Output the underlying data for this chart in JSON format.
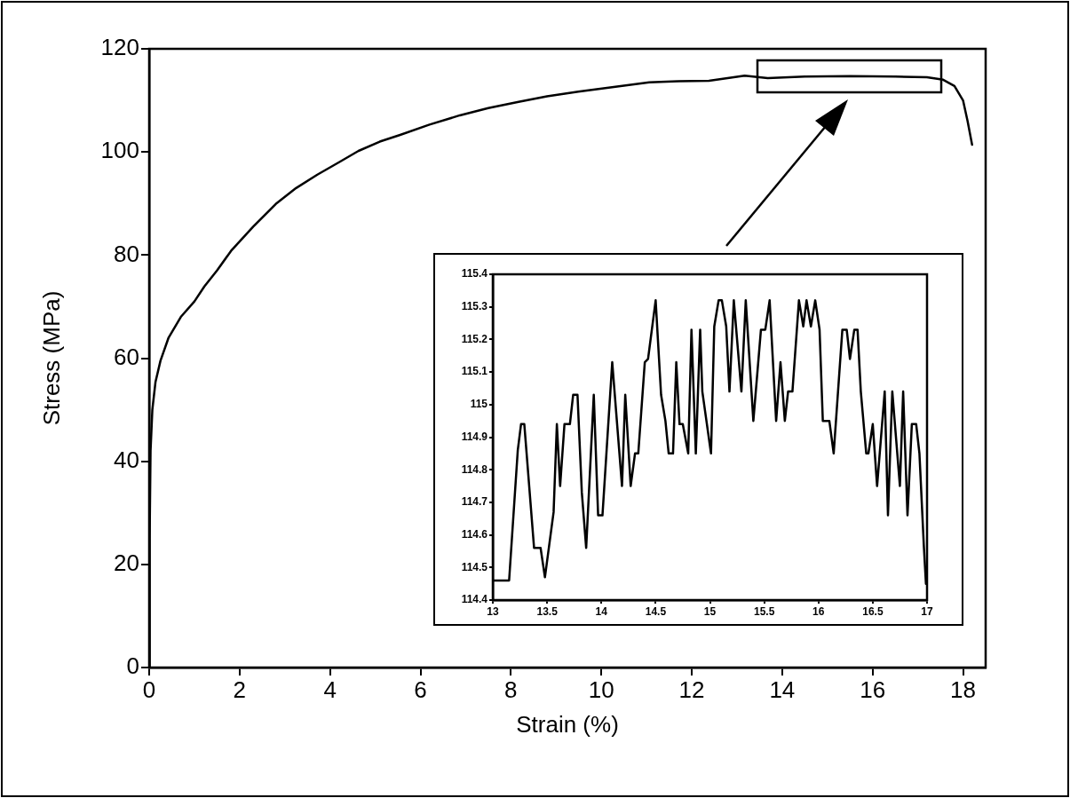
{
  "chart_data": [
    {
      "type": "line",
      "xlabel": "Strain (%)",
      "ylabel": "Stress (MPa)",
      "color": "#000000",
      "grid": false,
      "marker": "none",
      "line_style": "solid",
      "x": [
        0,
        0.01,
        0.03,
        0.07,
        0.14,
        0.25,
        0.43,
        0.7,
        1.0,
        1.22,
        1.5,
        1.81,
        2.3,
        2.8,
        3.25,
        3.72,
        4.2,
        4.63,
        5.1,
        5.55,
        6.2,
        6.87,
        7.5,
        8.17,
        8.8,
        9.49,
        10.2,
        11.06,
        11.7,
        12.38,
        13.17,
        13.68,
        14.5,
        15.5,
        16.5,
        17.2,
        17.56,
        17.81,
        18.0,
        18.1,
        18.2
      ],
      "values": [
        0,
        25,
        42,
        50,
        55.4,
        59.5,
        64,
        68,
        71,
        73.9,
        77,
        80.8,
        85.5,
        89.9,
        93,
        95.6,
        98,
        100.2,
        102,
        103.3,
        105.3,
        107.1,
        108.5,
        109.7,
        110.8,
        111.7,
        112.5,
        113.5,
        113.7,
        113.8,
        114.8,
        114.3,
        114.6,
        114.7,
        114.6,
        114.5,
        114.0,
        112.8,
        110,
        106,
        101.4
      ],
      "xlim": [
        0,
        18.5
      ],
      "xticks": [
        0,
        2,
        4,
        6,
        8,
        10,
        12,
        14,
        16,
        18
      ],
      "ylim": [
        0,
        120
      ],
      "yticks": [
        0,
        20,
        40,
        60,
        80,
        100,
        120
      ]
    },
    {
      "type": "line",
      "color": "#000000",
      "grid": false,
      "marker": "none",
      "line_style": "solid",
      "x": [
        13,
        13.15,
        13.23,
        13.26,
        13.29,
        13.38,
        13.44,
        13.48,
        13.56,
        13.59,
        13.62,
        13.66,
        13.71,
        13.74,
        13.78,
        13.82,
        13.86,
        13.93,
        13.97,
        14.01,
        14.1,
        14.19,
        14.22,
        14.27,
        14.31,
        14.34,
        14.4,
        14.43,
        14.5,
        14.55,
        14.59,
        14.62,
        14.66,
        14.69,
        14.72,
        14.75,
        14.8,
        14.83,
        14.87,
        14.91,
        14.93,
        15.01,
        15.04,
        15.08,
        15.11,
        15.15,
        15.18,
        15.22,
        15.29,
        15.33,
        15.4,
        15.47,
        15.51,
        15.55,
        15.61,
        15.65,
        15.69,
        15.72,
        15.76,
        15.82,
        15.86,
        15.89,
        15.93,
        15.97,
        16.01,
        16.04,
        16.1,
        16.14,
        16.18,
        16.22,
        16.26,
        16.29,
        16.33,
        16.36,
        16.39,
        16.44,
        16.46,
        16.5,
        16.54,
        16.61,
        16.64,
        16.68,
        16.75,
        16.78,
        16.82,
        16.86,
        16.9,
        16.93,
        16.97,
        16.99
      ],
      "values": [
        114.46,
        114.46,
        114.86,
        114.94,
        114.94,
        114.56,
        114.56,
        114.47,
        114.67,
        114.94,
        114.75,
        114.94,
        114.94,
        115.03,
        115.03,
        114.73,
        114.56,
        115.03,
        114.66,
        114.66,
        115.13,
        114.75,
        115.03,
        114.75,
        114.85,
        114.85,
        115.13,
        115.14,
        115.32,
        115.03,
        114.95,
        114.85,
        114.85,
        115.13,
        114.94,
        114.94,
        114.85,
        115.23,
        114.85,
        115.23,
        115.04,
        114.85,
        115.24,
        115.32,
        115.32,
        115.24,
        115.04,
        115.32,
        115.04,
        115.32,
        114.95,
        115.23,
        115.23,
        115.32,
        114.95,
        115.13,
        114.95,
        115.04,
        115.04,
        115.32,
        115.24,
        115.32,
        115.24,
        115.32,
        115.23,
        114.95,
        114.95,
        114.85,
        115.04,
        115.23,
        115.23,
        115.14,
        115.23,
        115.23,
        115.04,
        114.85,
        114.85,
        114.94,
        114.75,
        115.04,
        114.66,
        115.04,
        114.75,
        115.04,
        114.66,
        114.94,
        114.94,
        114.85,
        114.57,
        114.45
      ],
      "xlim": [
        13,
        17
      ],
      "xticks": [
        13,
        13.5,
        14,
        14.5,
        15,
        15.5,
        16,
        16.5,
        17
      ],
      "ylim": [
        114.4,
        115.4
      ],
      "yticks": [
        114.4,
        114.5,
        114.6,
        114.7,
        114.8,
        114.9,
        115,
        115.1,
        115.2,
        115.3,
        115.4
      ]
    }
  ]
}
